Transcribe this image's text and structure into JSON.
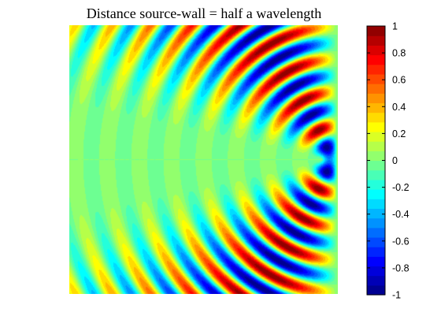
{
  "chart_data": {
    "type": "heatmap",
    "title": "Distance source-wall = half a wavelength",
    "xlabel": "",
    "ylabel": "",
    "colormap": "jet",
    "levels": 28,
    "clim": [
      -1,
      1
    ],
    "colorbar": {
      "ticks": [
        1,
        0.8,
        0.6,
        0.4,
        0.2,
        0,
        -0.2,
        -0.4,
        -0.6,
        -0.8,
        -1
      ],
      "tick_labels": [
        "1",
        "0.8",
        "0.6",
        "0.4",
        "0.2",
        "0",
        "-0.2",
        "-0.4",
        "-0.6",
        "-0.8",
        "-1"
      ],
      "placement": "right"
    },
    "source": {
      "x": 0.94,
      "y": 0.5
    },
    "mirror_source": {
      "x": 1.06,
      "y": 0.5
    },
    "wavelength": 0.12,
    "axes_visible": false
  }
}
